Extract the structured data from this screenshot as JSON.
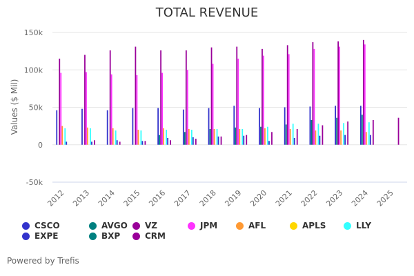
{
  "chart_data": {
    "type": "bar",
    "title": "TOTAL REVENUE",
    "xlabel": "",
    "ylabel": "Values ($ Mil)",
    "ylim": [
      -50000,
      150000
    ],
    "yticks": [
      -50000,
      0,
      50000,
      100000,
      150000
    ],
    "ytick_labels": [
      "-50k",
      "0",
      "50k",
      "100k",
      "150k"
    ],
    "grid": true,
    "legend_position": "bottom",
    "categories": [
      "2012",
      "2013",
      "2014",
      "2015",
      "2016",
      "2017",
      "2018",
      "2019",
      "2020",
      "2021",
      "2022",
      "2023",
      "2024",
      "2025"
    ],
    "series": [
      {
        "name": "CSCO",
        "color": "#3333cc",
        "values": [
          46000,
          48000,
          46000,
          49000,
          49000,
          47000,
          49000,
          52000,
          49000,
          50000,
          51000,
          52000,
          52000,
          null
        ]
      },
      {
        "name": "AVGO",
        "color": "#008080",
        "values": [
          null,
          null,
          null,
          null,
          13000,
          17000,
          21000,
          23000,
          24000,
          27000,
          33000,
          36000,
          40000,
          null
        ]
      },
      {
        "name": "VZ",
        "color": "#990099",
        "values": [
          115000,
          120000,
          126000,
          131000,
          126000,
          126000,
          130000,
          131000,
          128000,
          133000,
          137000,
          138000,
          140000,
          null
        ]
      },
      {
        "name": "JPM",
        "color": "#ff33ff",
        "values": [
          96000,
          97000,
          94000,
          93000,
          96000,
          100000,
          108000,
          115000,
          119000,
          121000,
          128000,
          131000,
          134000,
          null
        ]
      },
      {
        "name": "AFL",
        "color": "#ff9933",
        "values": [
          25000,
          23000,
          22000,
          20000,
          22000,
          21000,
          21000,
          21000,
          22000,
          21000,
          19000,
          19000,
          17000,
          null
        ]
      },
      {
        "name": "APLS",
        "color": "#ffd700",
        "values": [
          null,
          null,
          null,
          null,
          null,
          null,
          null,
          null,
          null,
          null,
          null,
          null,
          null,
          null
        ]
      },
      {
        "name": "LLY",
        "color": "#33ffff",
        "values": [
          22000,
          22000,
          19000,
          19000,
          20000,
          20000,
          21000,
          21000,
          24000,
          28000,
          28000,
          29000,
          30000,
          null
        ]
      },
      {
        "name": "EXPE",
        "color": "#3333cc",
        "values": [
          4000,
          4000,
          6000,
          5000,
          9000,
          10000,
          11000,
          12000,
          5000,
          9000,
          12000,
          13000,
          13000,
          null
        ]
      },
      {
        "name": "BXP",
        "color": "#008080",
        "values": [
          null,
          null,
          null,
          null,
          null,
          null,
          null,
          null,
          null,
          null,
          null,
          null,
          null,
          null
        ]
      },
      {
        "name": "CRM",
        "color": "#990099",
        "values": [
          null,
          6000,
          4000,
          5000,
          6000,
          8000,
          11000,
          13000,
          17000,
          21000,
          26000,
          31000,
          33000,
          36000
        ]
      }
    ]
  },
  "credit": "Powered by Trefis"
}
